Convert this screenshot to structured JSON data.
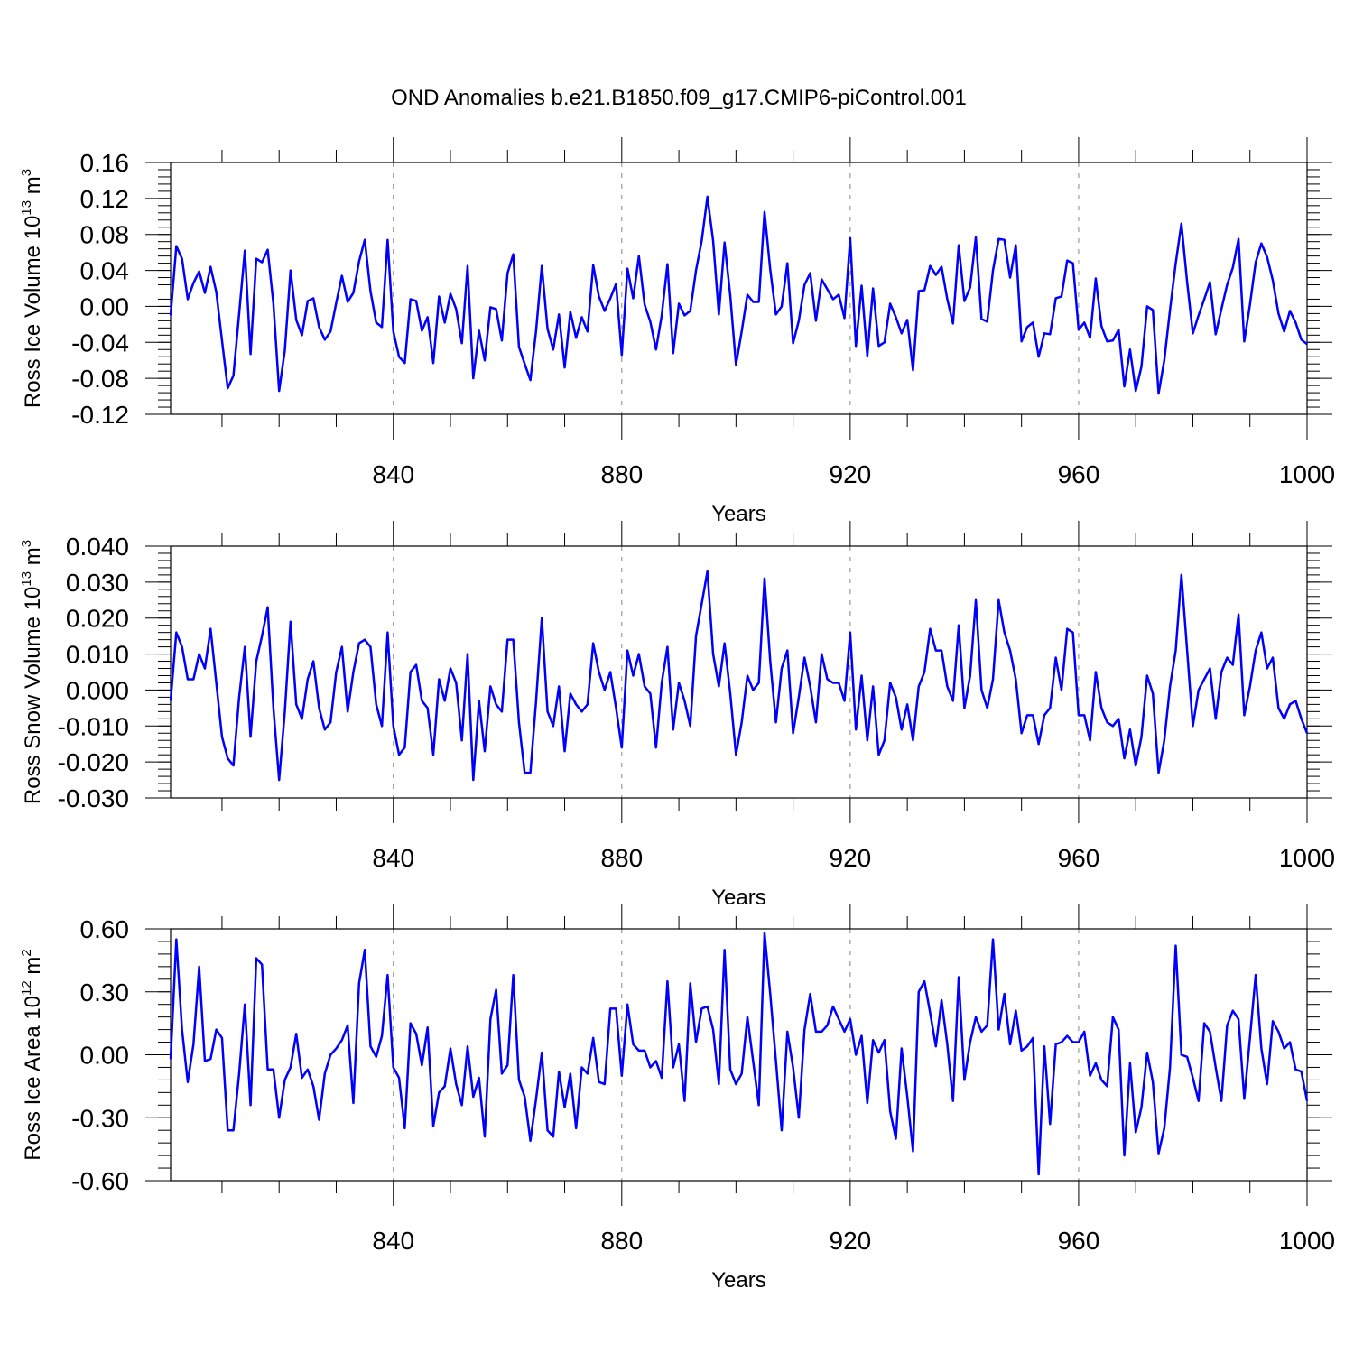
{
  "title": "OND Anomalies b.e21.B1850.f09_g17.CMIP6-piControl.001",
  "line_color": "#0000ff",
  "chart_data": [
    {
      "type": "line",
      "ylabel_main": "Ross Ice Volume 10",
      "ylabel_exp": "13",
      "ylabel_unit": " m",
      "ylabel_unit_exp": "3",
      "xlabel": "Years",
      "xlim": [
        801,
        1000
      ],
      "ylim": [
        -0.12,
        0.16
      ],
      "yticks": [
        "0.16",
        "0.12",
        "0.08",
        "0.04",
        "0.00",
        "-0.04",
        "-0.08",
        "-0.12"
      ],
      "ytick_values": [
        0.16,
        0.12,
        0.08,
        0.04,
        0.0,
        -0.04,
        -0.08,
        -0.12
      ],
      "xticks": [
        "840",
        "880",
        "920",
        "960",
        "1000"
      ],
      "xtick_values": [
        840,
        880,
        920,
        960,
        1000
      ],
      "x_start": 801,
      "series": [
        {
          "values": [
            -0.01,
            0.067,
            0.053,
            0.008,
            0.026,
            0.039,
            0.015,
            0.044,
            0.016,
            -0.038,
            -0.091,
            -0.077,
            -0.008,
            0.062,
            -0.053,
            0.053,
            0.049,
            0.063,
            0.003,
            -0.094,
            -0.049,
            0.04,
            -0.015,
            -0.032,
            0.006,
            0.009,
            -0.023,
            -0.037,
            -0.028,
            0.004,
            0.034,
            0.005,
            0.015,
            0.05,
            0.074,
            0.017,
            -0.018,
            -0.023,
            0.074,
            -0.028,
            -0.056,
            -0.063,
            0.008,
            0.006,
            -0.027,
            -0.012,
            -0.063,
            0.011,
            -0.018,
            0.014,
            -0.003,
            -0.041,
            0.045,
            -0.08,
            -0.027,
            -0.06,
            -0.001,
            -0.003,
            -0.038,
            0.037,
            0.058,
            -0.045,
            -0.064,
            -0.082,
            -0.027,
            0.045,
            -0.025,
            -0.048,
            -0.009,
            -0.068,
            -0.006,
            -0.035,
            -0.012,
            -0.028,
            0.046,
            0.011,
            -0.005,
            0.009,
            0.025,
            -0.054,
            0.042,
            0.009,
            0.056,
            0.002,
            -0.017,
            -0.048,
            -0.01,
            0.047,
            -0.052,
            0.003,
            -0.01,
            -0.005,
            0.04,
            0.073,
            0.122,
            0.073,
            -0.009,
            0.071,
            0.012,
            -0.065,
            -0.028,
            0.013,
            0.005,
            0.005,
            0.105,
            0.041,
            -0.009,
            0.0,
            0.048,
            -0.041,
            -0.016,
            0.024,
            0.037,
            -0.016,
            0.03,
            0.019,
            0.008,
            0.013,
            -0.013,
            0.076,
            -0.044,
            0.023,
            -0.055,
            0.02,
            -0.044,
            -0.04,
            0.003,
            -0.012,
            -0.03,
            -0.015,
            -0.071,
            0.017,
            0.018,
            0.045,
            0.035,
            0.044,
            0.008,
            -0.019,
            0.068,
            0.006,
            0.021,
            0.077,
            -0.014,
            -0.017,
            0.04,
            0.075,
            0.074,
            0.032,
            0.068,
            -0.039,
            -0.023,
            -0.018,
            -0.056,
            -0.03,
            -0.031,
            0.009,
            0.011,
            0.051,
            0.048,
            -0.026,
            -0.018,
            -0.035,
            0.031,
            -0.022,
            -0.039,
            -0.038,
            -0.026,
            -0.089,
            -0.048,
            -0.094,
            -0.067,
            0.0,
            -0.004,
            -0.097,
            -0.06,
            -0.004,
            0.048,
            0.092,
            0.027,
            -0.03,
            -0.01,
            0.008,
            0.027,
            -0.031,
            -0.003,
            0.024,
            0.043,
            0.075,
            -0.039,
            0.002,
            0.049,
            0.07,
            0.055,
            0.029,
            -0.008,
            -0.028,
            -0.005,
            -0.018,
            -0.037,
            -0.042
          ]
        }
      ]
    },
    {
      "type": "line",
      "ylabel_main": "Ross Snow Volume 10",
      "ylabel_exp": "13",
      "ylabel_unit": " m",
      "ylabel_unit_exp": "3",
      "xlabel": "Years",
      "xlim": [
        801,
        1000
      ],
      "ylim": [
        -0.03,
        0.04
      ],
      "yticks": [
        "0.040",
        "0.030",
        "0.020",
        "0.010",
        "0.000",
        "-0.010",
        "-0.020",
        "-0.030"
      ],
      "ytick_values": [
        0.04,
        0.03,
        0.02,
        0.01,
        0.0,
        -0.01,
        -0.02,
        -0.03
      ],
      "xticks": [
        "840",
        "880",
        "920",
        "960",
        "1000"
      ],
      "xtick_values": [
        840,
        880,
        920,
        960,
        1000
      ],
      "x_start": 801,
      "series": [
        {
          "values": [
            -0.003,
            0.016,
            0.012,
            0.003,
            0.003,
            0.01,
            0.006,
            0.017,
            0.002,
            -0.013,
            -0.019,
            -0.021,
            -0.002,
            0.012,
            -0.013,
            0.008,
            0.015,
            0.023,
            -0.005,
            -0.025,
            -0.006,
            0.019,
            -0.004,
            -0.008,
            0.003,
            0.008,
            -0.005,
            -0.011,
            -0.009,
            0.005,
            0.012,
            -0.006,
            0.005,
            0.013,
            0.014,
            0.012,
            -0.004,
            -0.01,
            0.016,
            -0.01,
            -0.018,
            -0.016,
            0.005,
            0.007,
            -0.003,
            -0.005,
            -0.018,
            0.003,
            -0.003,
            0.006,
            0.002,
            -0.014,
            0.01,
            -0.025,
            -0.003,
            -0.017,
            0.001,
            -0.004,
            -0.006,
            0.014,
            0.014,
            -0.009,
            -0.023,
            -0.023,
            -0.003,
            0.02,
            -0.006,
            -0.01,
            0.001,
            -0.017,
            -0.001,
            -0.004,
            -0.006,
            -0.004,
            0.013,
            0.005,
            -0.0,
            0.005,
            -0.005,
            -0.016,
            0.011,
            0.004,
            0.01,
            0.001,
            -0.001,
            -0.016,
            0.002,
            0.012,
            -0.011,
            0.002,
            -0.003,
            -0.01,
            0.015,
            0.024,
            0.033,
            0.01,
            0.001,
            0.013,
            -0.001,
            -0.018,
            -0.009,
            0.004,
            0.0,
            0.002,
            0.031,
            0.008,
            -0.009,
            0.006,
            0.011,
            -0.012,
            -0.002,
            0.009,
            0.001,
            -0.009,
            0.01,
            0.003,
            0.002,
            0.002,
            -0.003,
            0.016,
            -0.011,
            0.004,
            -0.014,
            0.001,
            -0.018,
            -0.014,
            0.002,
            -0.002,
            -0.011,
            -0.004,
            -0.014,
            0.001,
            0.005,
            0.017,
            0.011,
            0.011,
            0.001,
            -0.003,
            0.018,
            -0.005,
            0.004,
            0.025,
            0.0,
            -0.005,
            0.003,
            0.025,
            0.016,
            0.011,
            0.003,
            -0.012,
            -0.007,
            -0.007,
            -0.015,
            -0.007,
            -0.005,
            0.009,
            -0.0,
            0.017,
            0.016,
            -0.007,
            -0.007,
            -0.014,
            0.005,
            -0.005,
            -0.009,
            -0.01,
            -0.008,
            -0.019,
            -0.011,
            -0.021,
            -0.013,
            0.004,
            -0.001,
            -0.023,
            -0.014,
            0.001,
            0.011,
            0.032,
            0.011,
            -0.01,
            -0.0,
            0.003,
            0.006,
            -0.008,
            0.005,
            0.009,
            0.007,
            0.021,
            -0.007,
            0.001,
            0.011,
            0.016,
            0.006,
            0.009,
            -0.005,
            -0.008,
            -0.004,
            -0.003,
            -0.008,
            -0.012
          ]
        }
      ]
    },
    {
      "type": "line",
      "ylabel_main": "Ross Ice Area 10",
      "ylabel_exp": "12",
      "ylabel_unit": " m",
      "ylabel_unit_exp": "2",
      "xlabel": "Years",
      "xlim": [
        801,
        1000
      ],
      "ylim": [
        -0.6,
        0.6
      ],
      "yticks": [
        "0.60",
        "0.30",
        "0.00",
        "-0.30",
        "-0.60"
      ],
      "ytick_values": [
        0.6,
        0.3,
        0.0,
        -0.3,
        -0.6
      ],
      "xticks": [
        "840",
        "880",
        "920",
        "960",
        "1000"
      ],
      "xtick_values": [
        840,
        880,
        920,
        960,
        1000
      ],
      "x_start": 801,
      "series": [
        {
          "values": [
            -0.02,
            0.55,
            0.12,
            -0.13,
            0.05,
            0.42,
            -0.03,
            -0.02,
            0.12,
            0.08,
            -0.36,
            -0.36,
            -0.09,
            0.24,
            -0.24,
            0.46,
            0.43,
            -0.07,
            -0.07,
            -0.3,
            -0.12,
            -0.06,
            0.1,
            -0.11,
            -0.07,
            -0.15,
            -0.31,
            -0.09,
            0.0,
            0.03,
            0.07,
            0.14,
            -0.23,
            0.34,
            0.5,
            0.04,
            -0.01,
            0.09,
            0.38,
            -0.06,
            -0.11,
            -0.35,
            0.15,
            0.1,
            -0.05,
            0.13,
            -0.34,
            -0.18,
            -0.15,
            0.03,
            -0.14,
            -0.24,
            0.04,
            -0.2,
            -0.11,
            -0.39,
            0.17,
            0.31,
            -0.09,
            -0.05,
            0.38,
            -0.12,
            -0.2,
            -0.41,
            -0.21,
            0.01,
            -0.36,
            -0.39,
            -0.08,
            -0.25,
            -0.09,
            -0.35,
            -0.06,
            -0.09,
            0.08,
            -0.13,
            -0.14,
            0.22,
            0.22,
            -0.1,
            0.24,
            0.05,
            0.02,
            0.02,
            -0.06,
            -0.03,
            -0.11,
            0.35,
            -0.06,
            0.05,
            -0.22,
            0.34,
            0.06,
            0.22,
            0.23,
            0.12,
            -0.14,
            0.5,
            -0.07,
            -0.14,
            -0.09,
            0.18,
            -0.03,
            -0.24,
            0.58,
            0.29,
            -0.03,
            -0.36,
            0.11,
            -0.06,
            -0.3,
            0.12,
            0.29,
            0.11,
            0.11,
            0.14,
            0.23,
            0.17,
            0.11,
            0.17,
            0.0,
            0.09,
            -0.23,
            0.07,
            0.01,
            0.07,
            -0.27,
            -0.4,
            0.03,
            -0.2,
            -0.46,
            0.3,
            0.35,
            0.2,
            0.04,
            0.26,
            0.05,
            -0.22,
            0.37,
            -0.12,
            0.06,
            0.18,
            0.11,
            0.14,
            0.55,
            0.12,
            0.29,
            0.05,
            0.21,
            0.02,
            0.04,
            0.08,
            -0.57,
            0.04,
            -0.33,
            0.05,
            0.06,
            0.09,
            0.06,
            0.06,
            0.11,
            -0.1,
            -0.04,
            -0.12,
            -0.15,
            0.18,
            0.12,
            -0.48,
            -0.04,
            -0.37,
            -0.25,
            0.01,
            -0.13,
            -0.47,
            -0.35,
            -0.06,
            0.52,
            0.0,
            -0.01,
            -0.11,
            -0.22,
            0.15,
            0.11,
            -0.06,
            -0.22,
            0.14,
            0.21,
            0.17,
            -0.21,
            0.08,
            0.38,
            0.03,
            -0.14,
            0.16,
            0.11,
            0.03,
            0.06,
            -0.07,
            -0.08,
            -0.22
          ]
        }
      ]
    }
  ]
}
